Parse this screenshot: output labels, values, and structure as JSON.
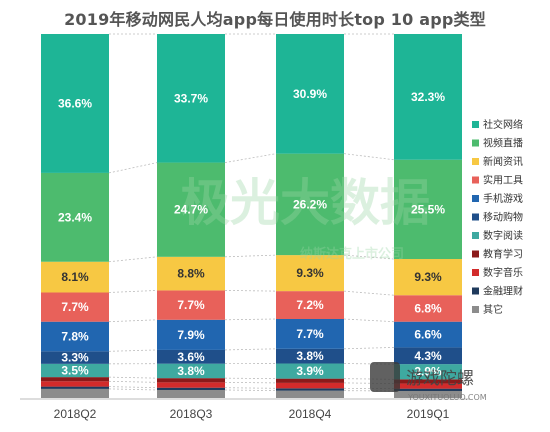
{
  "chart_data": {
    "type": "bar",
    "stacked": true,
    "percent_stacked": true,
    "title": "2019年移动网民人均app每日使用时长top 10 app类型",
    "categories": [
      "2018Q2",
      "2018Q3",
      "2018Q4",
      "2019Q1"
    ],
    "series": [
      {
        "name": "其它",
        "color": "#8c8c8c",
        "values": [
          2.4,
          2.1,
          1.9,
          1.8
        ]
      },
      {
        "name": "金融理财",
        "color": "#1f3a5c",
        "values": [
          0.6,
          0.6,
          0.6,
          0.6
        ]
      },
      {
        "name": "数字音乐",
        "color": "#d22b2b",
        "values": [
          1.4,
          1.4,
          1.4,
          1.3
        ]
      },
      {
        "name": "教育学习",
        "color": "#8b1a1a",
        "values": [
          1.1,
          1.1,
          1.1,
          1.1
        ]
      },
      {
        "name": "数字阅读",
        "color": "#3ea9a0",
        "values": [
          3.5,
          3.8,
          3.9,
          3.9
        ]
      },
      {
        "name": "移动购物",
        "color": "#1f4f8a",
        "values": [
          3.3,
          3.6,
          3.8,
          4.3
        ]
      },
      {
        "name": "手机游戏",
        "color": "#2166b0",
        "values": [
          7.8,
          7.9,
          7.7,
          6.6
        ]
      },
      {
        "name": "实用工具",
        "color": "#e8615a",
        "values": [
          7.7,
          7.7,
          7.2,
          6.8
        ]
      },
      {
        "name": "新闻资讯",
        "color": "#f7c843",
        "values": [
          8.1,
          8.8,
          9.3,
          9.3
        ]
      },
      {
        "name": "视频直播",
        "color": "#4dbb6e",
        "values": [
          23.4,
          24.7,
          26.2,
          25.5
        ]
      },
      {
        "name": "社交网络",
        "color": "#1eb596",
        "values": [
          36.6,
          33.7,
          30.9,
          32.3
        ]
      }
    ],
    "shown_labels": {
      "社交网络": [
        "36.6%",
        "33.7%",
        "30.9%",
        "32.3%"
      ],
      "视频直播": [
        "23.4%",
        "24.7%",
        "26.2%",
        "25.5%"
      ],
      "新闻资讯": [
        "8.1%",
        "8.8%",
        "9.3%",
        "9.3%"
      ],
      "实用工具": [
        "7.7%",
        "7.7%",
        "7.2%",
        "6.8%"
      ],
      "手机游戏": [
        "7.8%",
        "7.9%",
        "7.7%",
        "6.6%"
      ],
      "移动购物": [
        "3.3%",
        "3.6%",
        "3.8%",
        "4.3%"
      ],
      "数字阅读": [
        "3.5%",
        "3.8%",
        "3.9%",
        "3.9%"
      ]
    },
    "legend_order": [
      "社交网络",
      "视频直播",
      "新闻资讯",
      "实用工具",
      "手机游戏",
      "移动购物",
      "数字阅读",
      "教育学习",
      "数字音乐",
      "金融理财",
      "其它"
    ],
    "legend_position": "right",
    "grid": false
  },
  "watermark": {
    "main": "极光大数据",
    "sub": "纳斯达克上市公司"
  },
  "logo": {
    "name": "游戏陀螺",
    "url_text": "YOUXITUOLUO.COM"
  }
}
